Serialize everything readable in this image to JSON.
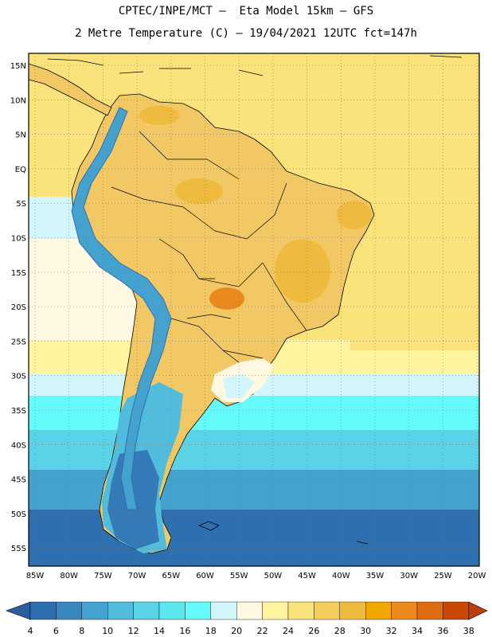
{
  "header": {
    "line1": "CPTEC/INPE/MCT –  Eta Model 15km – GFS",
    "line2": "2 Metre Temperature (C) – 19/04/2021 12UTC fct=147h"
  },
  "axes": {
    "lat_labels": [
      "15N",
      "10N",
      "5N",
      "EQ",
      "5S",
      "10S",
      "15S",
      "20S",
      "25S",
      "30S",
      "35S",
      "40S",
      "45S",
      "50S",
      "55S"
    ],
    "lon_labels": [
      "85W",
      "80W",
      "75W",
      "70W",
      "65W",
      "60W",
      "55W",
      "50W",
      "45W",
      "40W",
      "35W",
      "30W",
      "25W",
      "20W"
    ]
  },
  "colorbar": {
    "ticks": [
      "4",
      "6",
      "8",
      "10",
      "12",
      "14",
      "16",
      "18",
      "20",
      "22",
      "24",
      "26",
      "28",
      "30",
      "32",
      "34",
      "36",
      "38"
    ],
    "colors": [
      "#2e6fb0",
      "#3a86c0",
      "#45a2cf",
      "#52bcdc",
      "#5ad3e6",
      "#5ee6ef",
      "#66fbfb",
      "#d2f6fb",
      "#fff8e2",
      "#fff5a0",
      "#fbe37c",
      "#f5cd5c",
      "#efbb3e",
      "#f0a800",
      "#e9891e",
      "#df6c10",
      "#c94806"
    ],
    "low_color": "#2c5e9e",
    "high_color": "#b8400d"
  },
  "map": {
    "ocean_colors": {
      "north": "#fbe37c",
      "mid": "#d2f6fb",
      "south": "#52bcdc",
      "far_south": "#2e6fb0"
    },
    "land_color": "#f2c864",
    "andes_color": "#45a2cf",
    "hotspot_color": "#e9891e"
  }
}
